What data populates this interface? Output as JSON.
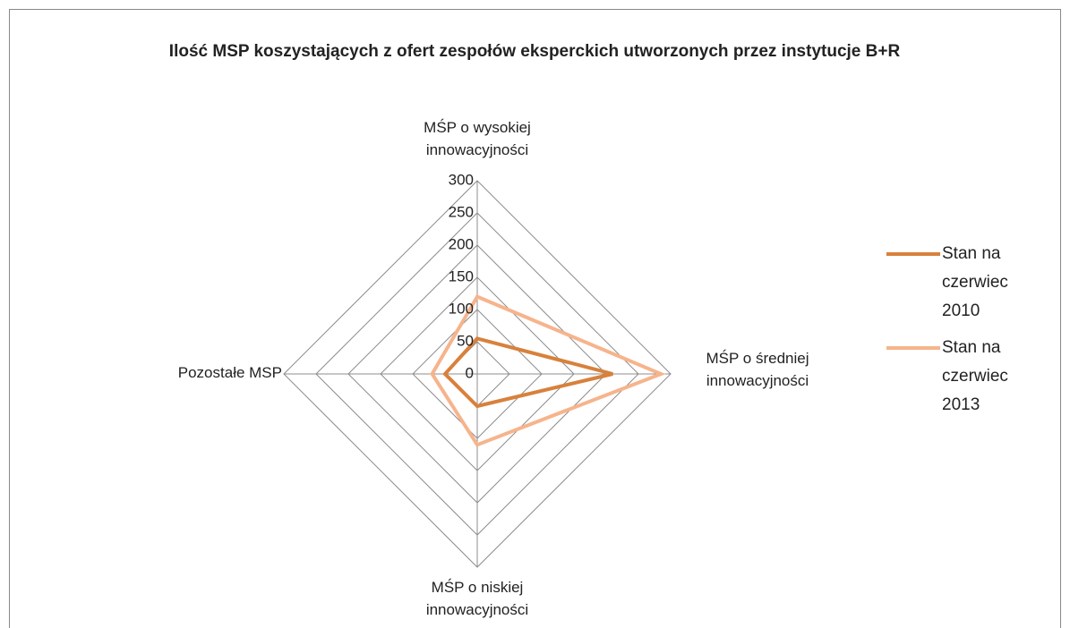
{
  "chart_data": {
    "type": "radar",
    "title": "Ilość MSP koszystających z ofert zespołów eksperckich utworzonych przez instytucje B+R",
    "categories": [
      "MŚP o wysokiej innowacyjności",
      "MŚP o średniej innowacyjności",
      "MŚP o niskiej innowacyjności",
      "Pozostałe MSP"
    ],
    "series": [
      {
        "name": "Stan na czerwiec 2010",
        "color": "#d8813c",
        "values": [
          55,
          210,
          50,
          50
        ]
      },
      {
        "name": "Stan na czerwiec 2013",
        "color": "#f6b48c",
        "values": [
          120,
          285,
          110,
          70
        ]
      }
    ],
    "rlim": [
      0,
      300
    ],
    "rticks": [
      0,
      50,
      100,
      150,
      200,
      250,
      300
    ],
    "grid": true,
    "legend": "right"
  }
}
